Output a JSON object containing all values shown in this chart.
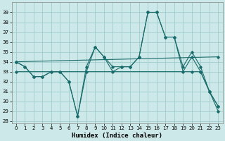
{
  "xlabel": "Humidex (Indice chaleur)",
  "bg_color": "#cde8e8",
  "grid_color": "#a0cccc",
  "line_color": "#1a6b6b",
  "xlim": [
    -0.5,
    23.5
  ],
  "ylim": [
    27.8,
    40.0
  ],
  "yticks": [
    28,
    29,
    30,
    31,
    32,
    33,
    34,
    35,
    36,
    37,
    38,
    39
  ],
  "xticks": [
    0,
    1,
    2,
    3,
    4,
    5,
    6,
    7,
    8,
    9,
    10,
    11,
    12,
    13,
    14,
    15,
    16,
    17,
    18,
    19,
    20,
    21,
    22,
    23
  ],
  "line1_x": [
    0,
    1,
    2,
    3,
    4,
    5,
    6,
    7,
    8,
    9,
    10,
    11,
    12,
    13,
    14,
    15,
    16,
    17,
    18,
    19,
    20,
    21,
    22,
    23
  ],
  "line1_y": [
    34.0,
    33.5,
    32.5,
    32.5,
    33.0,
    33.0,
    32.0,
    28.5,
    33.0,
    35.5,
    34.5,
    33.0,
    33.5,
    33.5,
    34.5,
    39.0,
    39.0,
    36.5,
    36.5,
    33.0,
    34.5,
    33.0,
    31.0,
    29.0
  ],
  "line2_x": [
    0,
    1,
    2,
    3,
    4,
    5,
    6,
    7,
    8,
    9,
    10,
    11,
    12,
    13,
    14,
    15,
    16,
    17,
    18,
    19,
    20,
    21,
    22,
    23
  ],
  "line2_y": [
    34.0,
    33.5,
    32.5,
    32.5,
    33.0,
    33.0,
    32.0,
    28.5,
    33.5,
    35.5,
    34.5,
    33.5,
    33.5,
    33.5,
    34.5,
    39.0,
    39.0,
    36.5,
    36.5,
    33.5,
    35.0,
    33.5,
    31.0,
    29.5
  ],
  "line3_x": [
    0,
    23
  ],
  "line3_y": [
    34.0,
    34.5
  ],
  "line4_x": [
    0,
    20,
    21,
    22,
    23
  ],
  "line4_y": [
    33.0,
    33.0,
    33.0,
    31.0,
    29.5
  ]
}
